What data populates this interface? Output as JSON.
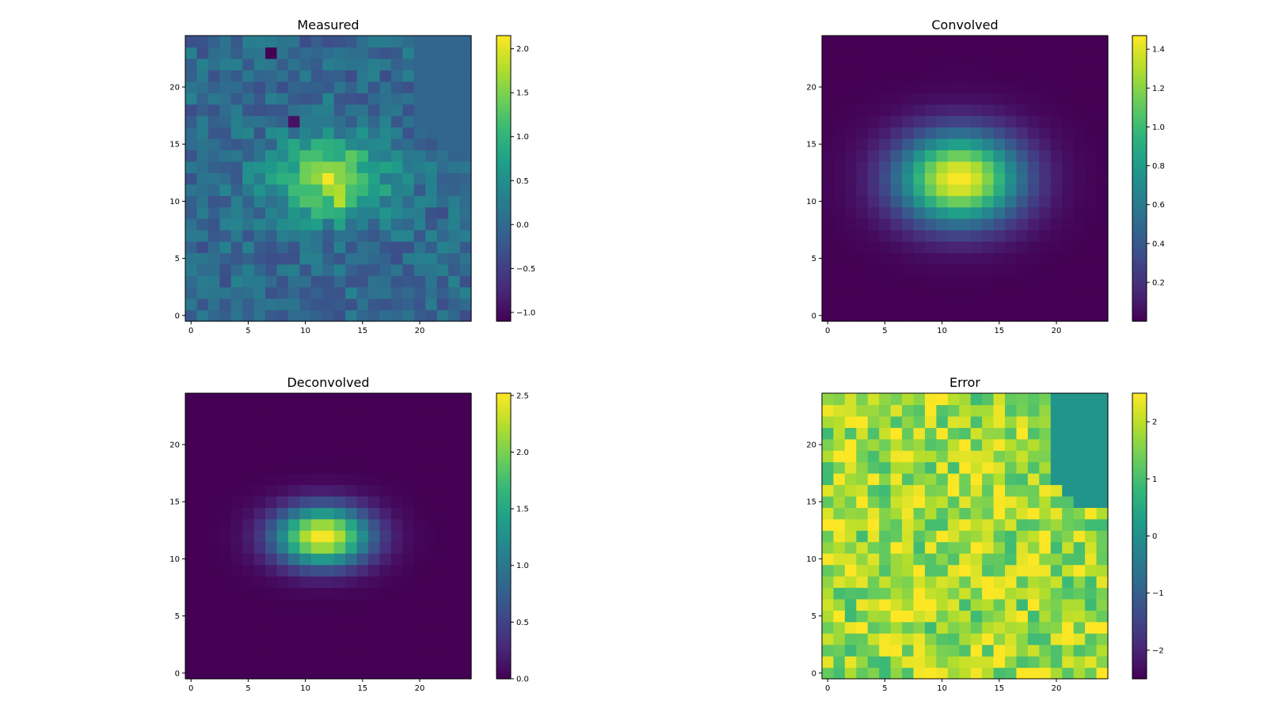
{
  "chart_data": [
    {
      "type": "heatmap",
      "id": "measured",
      "title": "Measured",
      "xlabel": "",
      "ylabel": "",
      "grid_size": 25,
      "x_ticks": [
        "0",
        "5",
        "10",
        "15",
        "20"
      ],
      "y_ticks": [
        "0",
        "5",
        "10",
        "15",
        "20"
      ],
      "colorbar": {
        "range": [
          -1.1,
          2.15
        ],
        "ticks": [
          {
            "value": -1.0,
            "label": "−1.0"
          },
          {
            "value": -0.5,
            "label": "−0.5"
          },
          {
            "value": 0.0,
            "label": "0.0"
          },
          {
            "value": 0.5,
            "label": "0.5"
          },
          {
            "value": 1.0,
            "label": "1.0"
          },
          {
            "value": 1.5,
            "label": "1.5"
          },
          {
            "value": 2.0,
            "label": "2.0"
          }
        ]
      },
      "field": {
        "kind": "noisy_gaussian",
        "peak": 1.6,
        "center": [
          12,
          12
        ],
        "sigma": [
          3.5,
          2.5
        ],
        "noise_amplitude": 0.35,
        "noise_offset": 0.0,
        "flat_corner_value": -0.05,
        "seed": 17
      },
      "highlights": [
        {
          "row": 12,
          "col": 12,
          "value": 2.1
        },
        {
          "row": 10,
          "col": 13,
          "value": 1.8
        },
        {
          "row": 23,
          "col": 7,
          "value": -1.1
        },
        {
          "row": 17,
          "col": 9,
          "value": -0.95
        }
      ]
    },
    {
      "type": "heatmap",
      "id": "convolved",
      "title": "Convolved",
      "xlabel": "",
      "ylabel": "",
      "grid_size": 25,
      "x_ticks": [
        "0",
        "5",
        "10",
        "15",
        "20"
      ],
      "y_ticks": [
        "0",
        "5",
        "10",
        "15",
        "20"
      ],
      "colorbar": {
        "range": [
          0.0,
          1.47
        ],
        "ticks": [
          {
            "value": 0.2,
            "label": "0.2"
          },
          {
            "value": 0.4,
            "label": "0.4"
          },
          {
            "value": 0.6,
            "label": "0.6"
          },
          {
            "value": 0.8,
            "label": "0.8"
          },
          {
            "value": 1.0,
            "label": "1.0"
          },
          {
            "value": 1.2,
            "label": "1.2"
          },
          {
            "value": 1.4,
            "label": "1.4"
          }
        ]
      },
      "field": {
        "kind": "gaussian",
        "peak": 1.47,
        "center": [
          11.5,
          12
        ],
        "sigma": [
          3.8,
          2.8
        ]
      }
    },
    {
      "type": "heatmap",
      "id": "deconvolved",
      "title": "Deconvolved",
      "xlabel": "",
      "ylabel": "",
      "grid_size": 25,
      "x_ticks": [
        "0",
        "5",
        "10",
        "15",
        "20"
      ],
      "y_ticks": [
        "0",
        "5",
        "10",
        "15",
        "20"
      ],
      "colorbar": {
        "range": [
          0.0,
          2.52
        ],
        "ticks": [
          {
            "value": 0.0,
            "label": "0.0"
          },
          {
            "value": 0.5,
            "label": "0.5"
          },
          {
            "value": 1.0,
            "label": "1.0"
          },
          {
            "value": 1.5,
            "label": "1.5"
          },
          {
            "value": 2.0,
            "label": "2.0"
          },
          {
            "value": 2.5,
            "label": "2.5"
          }
        ]
      },
      "field": {
        "kind": "gaussian",
        "peak": 2.52,
        "center": [
          11.5,
          12
        ],
        "sigma": [
          2.9,
          1.8
        ]
      }
    },
    {
      "type": "heatmap",
      "id": "error",
      "title": "Error",
      "xlabel": "",
      "ylabel": "",
      "grid_size": 25,
      "x_ticks": [
        "0",
        "5",
        "10",
        "15",
        "20"
      ],
      "y_ticks": [
        "0",
        "5",
        "10",
        "15",
        "20"
      ],
      "colorbar": {
        "range": [
          -2.5,
          2.5
        ],
        "ticks": [
          {
            "value": -2,
            "label": "−2"
          },
          {
            "value": -1,
            "label": "−1"
          },
          {
            "value": 0,
            "label": "0"
          },
          {
            "value": 1,
            "label": "1"
          },
          {
            "value": 2,
            "label": "2"
          }
        ]
      },
      "field": {
        "kind": "clipped_noise",
        "base": 1.75,
        "noise_amplitude": 0.9,
        "clip": [
          0.9,
          2.5
        ],
        "flat_corner_value": 0.1,
        "seed": 42
      }
    }
  ],
  "flat_corner": {
    "rows_from_top": [
      24,
      23,
      22,
      21,
      20,
      19,
      18,
      17,
      16,
      15
    ],
    "start_col_per_row": [
      20,
      20,
      20,
      20,
      20,
      20,
      20,
      20,
      21,
      22
    ]
  },
  "colormap": {
    "name": "viridis",
    "stops": [
      "#440154",
      "#482878",
      "#3e4a89",
      "#31688e",
      "#26828e",
      "#1f9e89",
      "#35b779",
      "#6ece58",
      "#b5de2b",
      "#fde725"
    ]
  }
}
